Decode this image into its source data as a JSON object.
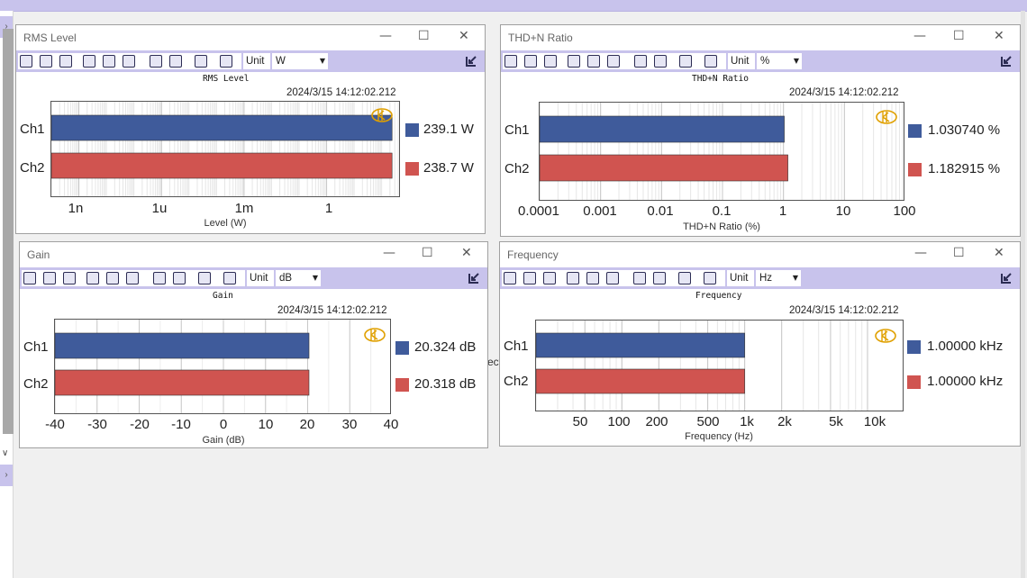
{
  "app": {
    "background_fragment": "ect",
    "colors": {
      "accent": "#c8c3ec",
      "ch1": "#3f5b9b",
      "ch2": "#d05450",
      "logo": "#e0a000"
    }
  },
  "toolbar_icons": [
    "save-icon",
    "save-as-icon",
    "print-icon",
    "zoom-icon",
    "pan-icon",
    "fit-icon",
    "table-icon",
    "chart-type-icon",
    "function-icon",
    "settings-icon"
  ],
  "panels": {
    "rms": {
      "window_title": "RMS Level",
      "unit_label": "Unit",
      "unit_value": "W",
      "chart_title": "RMS Level",
      "timestamp": "2024/3/15 14:12:02.212",
      "channels": [
        {
          "name": "Ch1",
          "value_text": "239.1 W"
        },
        {
          "name": "Ch2",
          "value_text": "238.7 W"
        }
      ],
      "ticks": [
        "1n",
        "1u",
        "1m",
        "1"
      ],
      "xlabel": "Level (W)"
    },
    "thd": {
      "window_title": "THD+N Ratio",
      "unit_label": "Unit",
      "unit_value": "%",
      "chart_title": "THD+N Ratio",
      "timestamp": "2024/3/15 14:12:02.212",
      "channels": [
        {
          "name": "Ch1",
          "value_text": "1.030740 %"
        },
        {
          "name": "Ch2",
          "value_text": "1.182915 %"
        }
      ],
      "ticks": [
        "0.0001",
        "0.001",
        "0.01",
        "0.1",
        "1",
        "10",
        "100"
      ],
      "xlabel": "THD+N Ratio (%)"
    },
    "gain": {
      "window_title": "Gain",
      "unit_label": "Unit",
      "unit_value": "dB",
      "chart_title": "Gain",
      "timestamp": "2024/3/15 14:12:02.212",
      "channels": [
        {
          "name": "Ch1",
          "value_text": "20.324 dB"
        },
        {
          "name": "Ch2",
          "value_text": "20.318 dB"
        }
      ],
      "ticks": [
        "-40",
        "-30",
        "-20",
        "-10",
        "0",
        "10",
        "20",
        "30",
        "40"
      ],
      "xlabel": "Gain (dB)"
    },
    "freq": {
      "window_title": "Frequency",
      "unit_label": "Unit",
      "unit_value": "Hz",
      "chart_title": "Frequency",
      "timestamp": "2024/3/15 14:12:02.212",
      "channels": [
        {
          "name": "Ch1",
          "value_text": "1.00000 kHz"
        },
        {
          "name": "Ch2",
          "value_text": "1.00000 kHz"
        }
      ],
      "ticks": [
        "50",
        "100",
        "200",
        "500",
        "1k",
        "2k",
        "5k",
        "10k"
      ],
      "xlabel": "Frequency (Hz)"
    }
  },
  "chart_data": [
    {
      "type": "bar",
      "orientation": "horizontal",
      "title": "RMS Level",
      "categories": [
        "Ch1",
        "Ch2"
      ],
      "values": [
        239.1,
        238.7
      ],
      "xlabel": "Level (W)",
      "xscale": "log",
      "xlim": [
        1e-10,
        500
      ],
      "x_ticks": [
        1e-09,
        1e-06,
        0.001,
        1
      ],
      "grid": true
    },
    {
      "type": "bar",
      "orientation": "horizontal",
      "title": "THD+N Ratio",
      "categories": [
        "Ch1",
        "Ch2"
      ],
      "values": [
        1.03074,
        1.182915
      ],
      "xlabel": "THD+N Ratio (%)",
      "xscale": "log",
      "xlim": [
        0.0001,
        100
      ],
      "x_ticks": [
        0.0001,
        0.001,
        0.01,
        0.1,
        1,
        10,
        100
      ],
      "grid": true
    },
    {
      "type": "bar",
      "orientation": "horizontal",
      "title": "Gain",
      "categories": [
        "Ch1",
        "Ch2"
      ],
      "values": [
        20.324,
        20.318
      ],
      "xlabel": "Gain (dB)",
      "xscale": "linear",
      "xlim": [
        -40,
        40
      ],
      "x_ticks": [
        -40,
        -30,
        -20,
        -10,
        0,
        10,
        20,
        30,
        40
      ],
      "grid": true
    },
    {
      "type": "bar",
      "orientation": "horizontal",
      "title": "Frequency",
      "categories": [
        "Ch1",
        "Ch2"
      ],
      "values": [
        1000,
        1000
      ],
      "xlabel": "Frequency (Hz)",
      "xscale": "log",
      "xlim": [
        20,
        20000
      ],
      "x_ticks": [
        50,
        100,
        200,
        500,
        1000,
        2000,
        5000,
        10000
      ],
      "grid": true
    }
  ]
}
